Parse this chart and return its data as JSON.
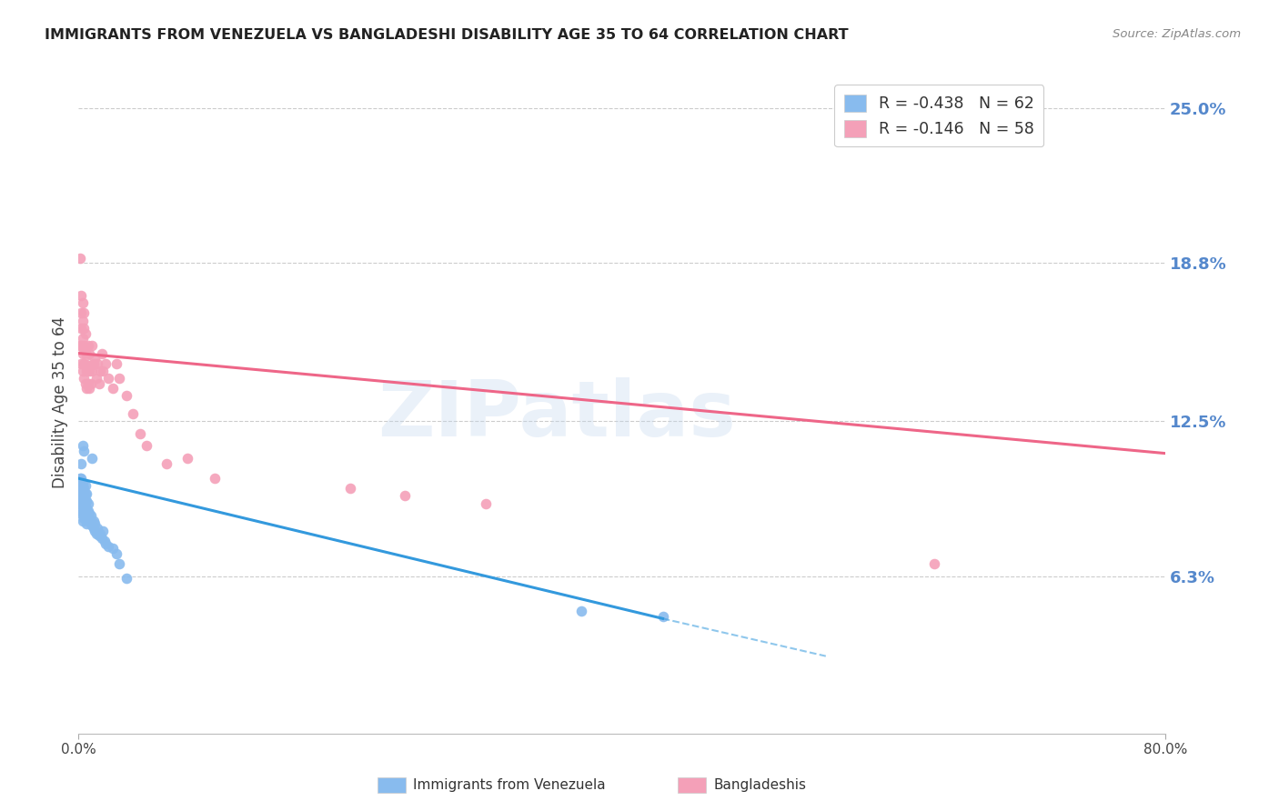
{
  "title": "IMMIGRANTS FROM VENEZUELA VS BANGLADESHI DISABILITY AGE 35 TO 64 CORRELATION CHART",
  "source": "Source: ZipAtlas.com",
  "ylabel": "Disability Age 35 to 64",
  "y_tick_labels": [
    "6.3%",
    "12.5%",
    "18.8%",
    "25.0%"
  ],
  "y_tick_values": [
    0.063,
    0.125,
    0.188,
    0.25
  ],
  "x_min": 0.0,
  "x_max": 0.8,
  "y_min": 0.0,
  "y_max": 0.265,
  "legend_r_blue": "R = -0.438",
  "legend_n_blue": "N = 62",
  "legend_r_pink": "R = -0.146",
  "legend_n_pink": "N = 58",
  "series_blue_x": [
    0.001,
    0.001,
    0.001,
    0.001,
    0.002,
    0.002,
    0.002,
    0.002,
    0.002,
    0.002,
    0.002,
    0.003,
    0.003,
    0.003,
    0.003,
    0.003,
    0.003,
    0.003,
    0.004,
    0.004,
    0.004,
    0.004,
    0.004,
    0.004,
    0.005,
    0.005,
    0.005,
    0.005,
    0.005,
    0.006,
    0.006,
    0.006,
    0.006,
    0.006,
    0.007,
    0.007,
    0.007,
    0.008,
    0.008,
    0.009,
    0.009,
    0.01,
    0.01,
    0.011,
    0.011,
    0.012,
    0.012,
    0.013,
    0.014,
    0.015,
    0.016,
    0.017,
    0.018,
    0.019,
    0.02,
    0.022,
    0.025,
    0.028,
    0.03,
    0.035,
    0.37,
    0.43
  ],
  "series_blue_y": [
    0.092,
    0.095,
    0.098,
    0.102,
    0.088,
    0.09,
    0.093,
    0.096,
    0.099,
    0.102,
    0.108,
    0.085,
    0.088,
    0.091,
    0.094,
    0.097,
    0.1,
    0.115,
    0.086,
    0.089,
    0.092,
    0.095,
    0.098,
    0.113,
    0.087,
    0.09,
    0.093,
    0.096,
    0.099,
    0.084,
    0.087,
    0.09,
    0.093,
    0.096,
    0.086,
    0.089,
    0.092,
    0.085,
    0.088,
    0.084,
    0.087,
    0.083,
    0.11,
    0.082,
    0.085,
    0.081,
    0.084,
    0.08,
    0.082,
    0.079,
    0.08,
    0.078,
    0.081,
    0.077,
    0.076,
    0.075,
    0.074,
    0.072,
    0.068,
    0.062,
    0.049,
    0.047
  ],
  "series_pink_x": [
    0.001,
    0.001,
    0.002,
    0.002,
    0.002,
    0.002,
    0.002,
    0.003,
    0.003,
    0.003,
    0.003,
    0.003,
    0.004,
    0.004,
    0.004,
    0.004,
    0.004,
    0.005,
    0.005,
    0.005,
    0.005,
    0.006,
    0.006,
    0.006,
    0.007,
    0.007,
    0.007,
    0.008,
    0.008,
    0.008,
    0.009,
    0.009,
    0.01,
    0.01,
    0.011,
    0.012,
    0.013,
    0.014,
    0.015,
    0.016,
    0.017,
    0.018,
    0.02,
    0.022,
    0.025,
    0.028,
    0.03,
    0.035,
    0.04,
    0.045,
    0.05,
    0.065,
    0.08,
    0.1,
    0.2,
    0.24,
    0.3,
    0.63
  ],
  "series_pink_y": [
    0.155,
    0.19,
    0.148,
    0.155,
    0.162,
    0.168,
    0.175,
    0.145,
    0.152,
    0.158,
    0.165,
    0.172,
    0.142,
    0.148,
    0.155,
    0.162,
    0.168,
    0.14,
    0.147,
    0.153,
    0.16,
    0.138,
    0.145,
    0.151,
    0.14,
    0.147,
    0.155,
    0.138,
    0.145,
    0.152,
    0.14,
    0.147,
    0.145,
    0.155,
    0.148,
    0.15,
    0.142,
    0.148,
    0.14,
    0.145,
    0.152,
    0.145,
    0.148,
    0.142,
    0.138,
    0.148,
    0.142,
    0.135,
    0.128,
    0.12,
    0.115,
    0.108,
    0.11,
    0.102,
    0.098,
    0.095,
    0.092,
    0.068
  ],
  "trendline_blue_x0": 0.0,
  "trendline_blue_y0": 0.102,
  "trendline_blue_x1": 0.43,
  "trendline_blue_y1": 0.046,
  "trendline_blue_dash_x1": 0.55,
  "trendline_blue_dash_y1": 0.031,
  "trendline_pink_x0": 0.0,
  "trendline_pink_y0": 0.152,
  "trendline_pink_x1": 0.8,
  "trendline_pink_y1": 0.112,
  "trendline_blue_color": "#3399dd",
  "trendline_pink_color": "#ee6688",
  "marker_blue_color": "#88bbee",
  "marker_pink_color": "#f4a0b8",
  "watermark_text": "ZIPatlas",
  "watermark_color": "#c5d8ee",
  "watermark_alpha": 0.35,
  "background_color": "#ffffff",
  "grid_color": "#cccccc",
  "title_color": "#222222",
  "source_color": "#888888",
  "right_axis_color": "#5588cc",
  "bottom_label_blue": "Immigrants from Venezuela",
  "bottom_label_pink": "Bangladeshis"
}
